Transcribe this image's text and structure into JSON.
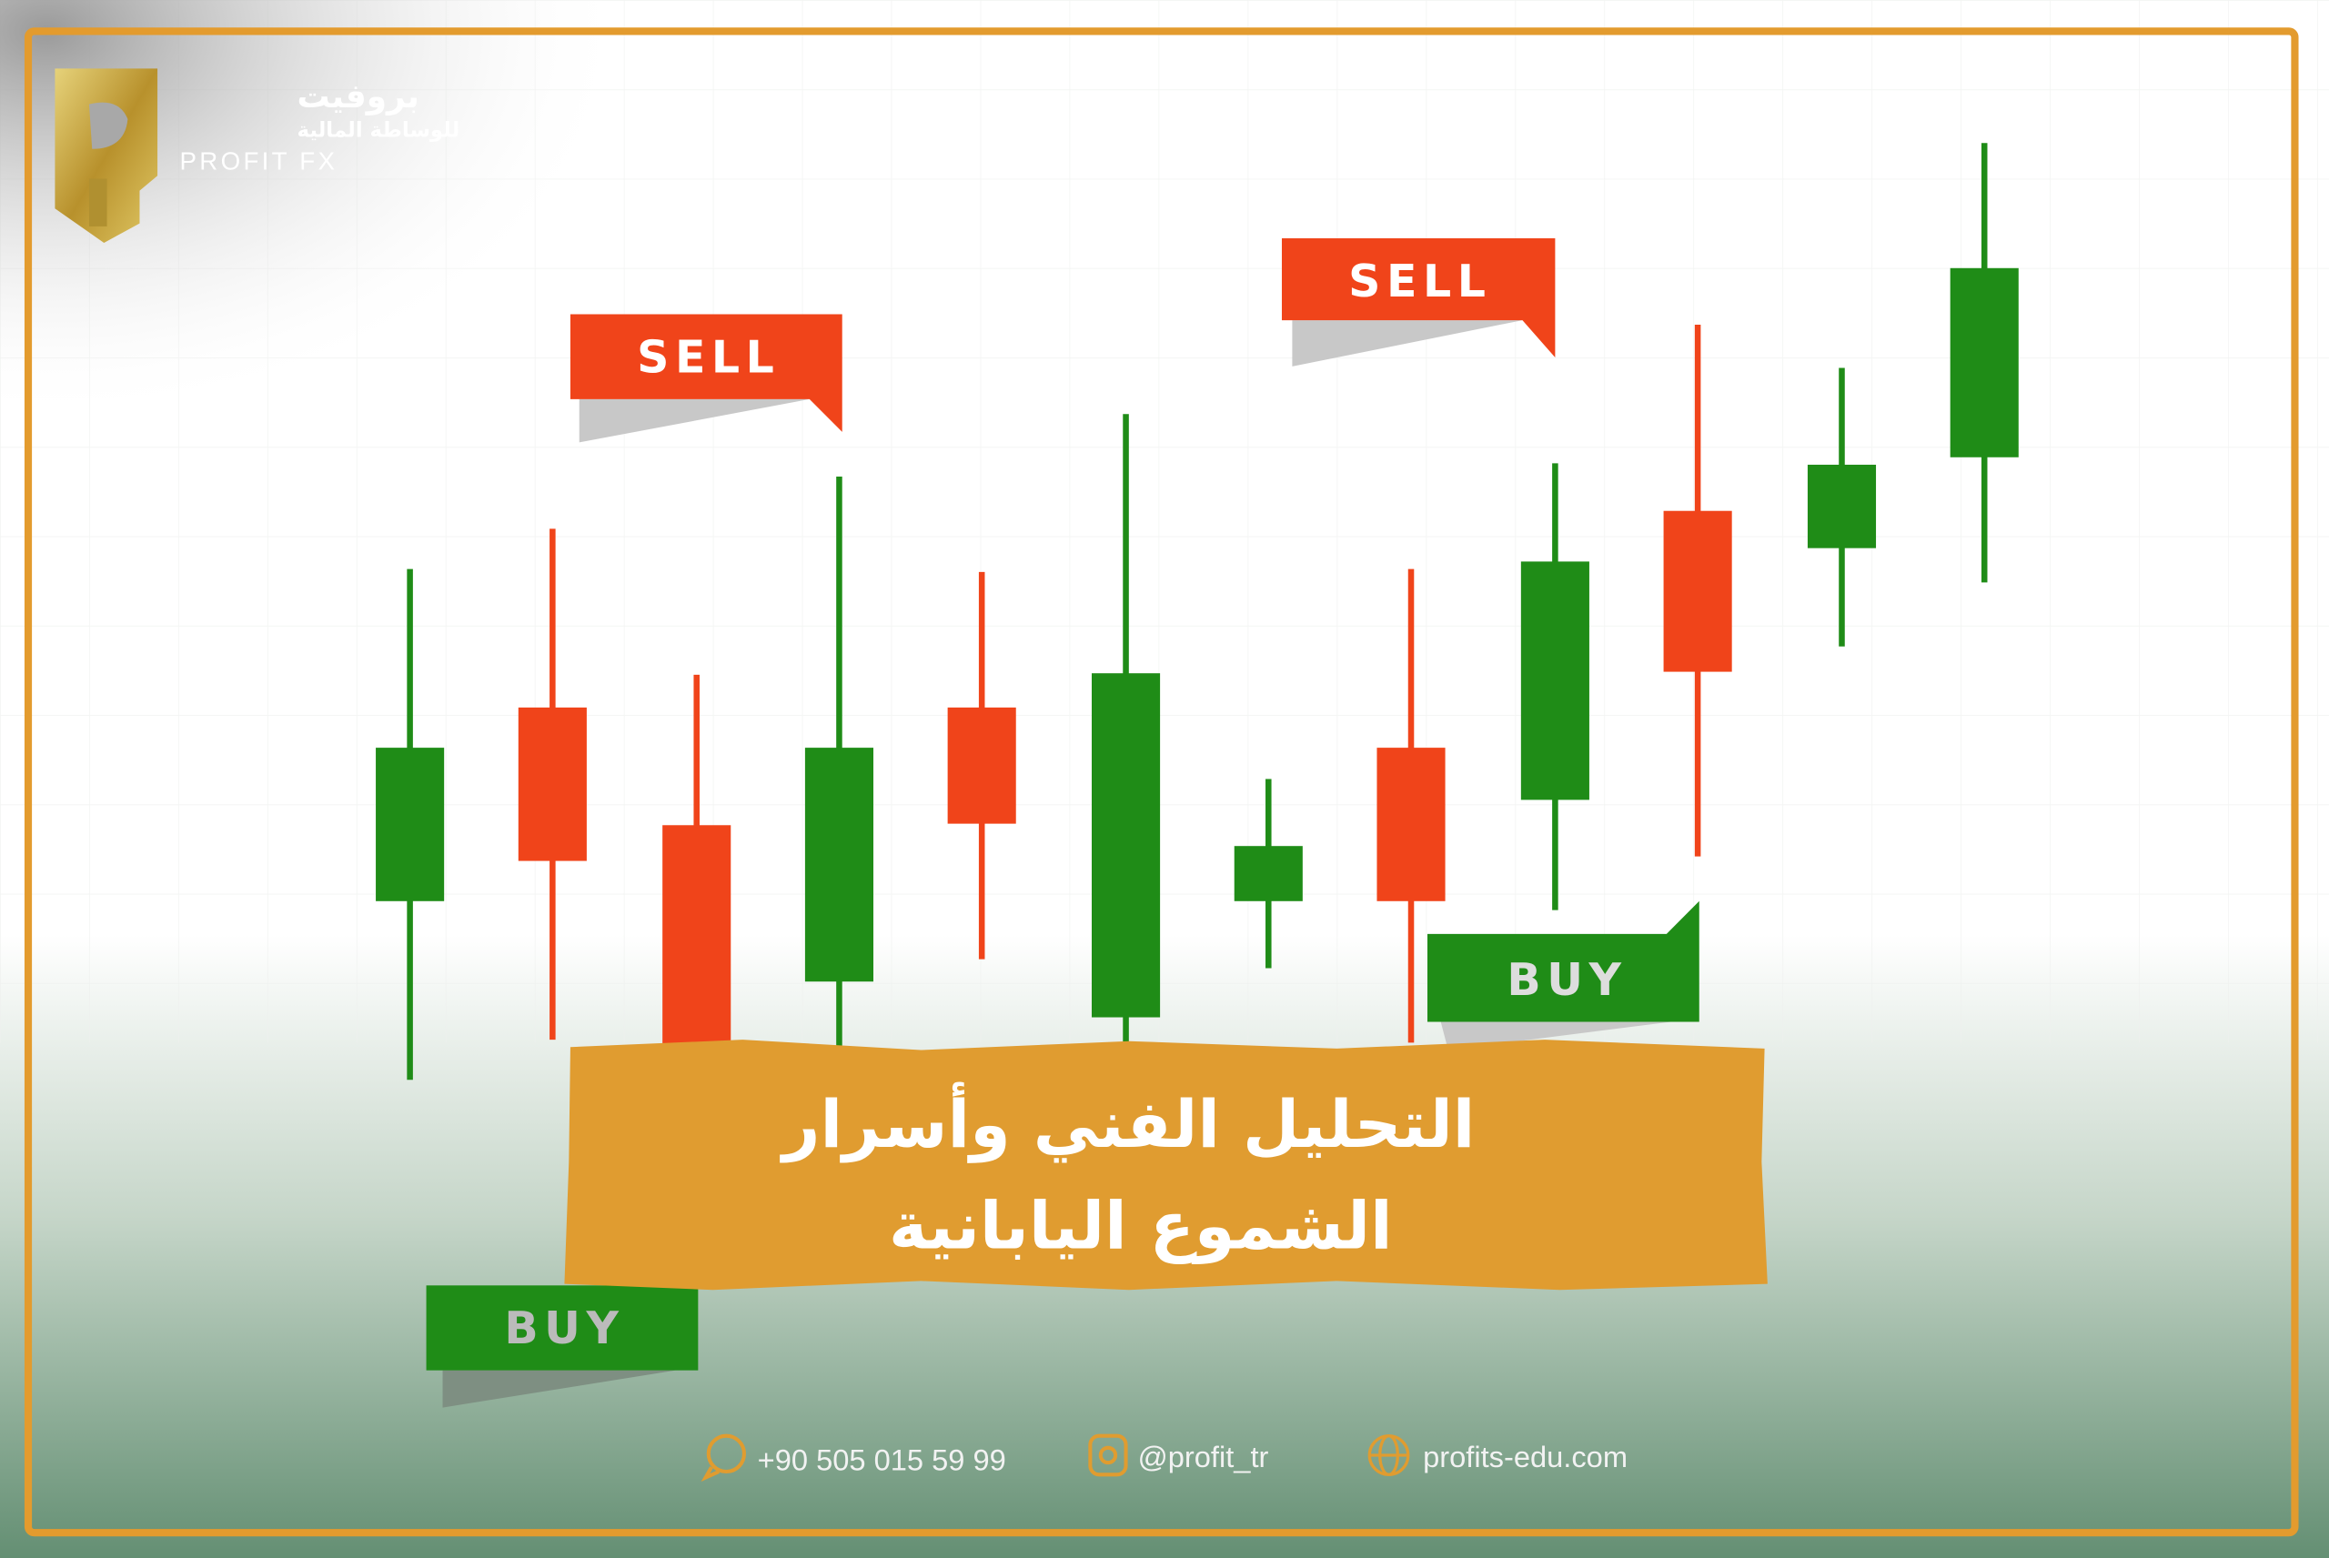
{
  "brand": {
    "name_ar": "بروفيت",
    "subtitle_ar": "للوساطة المالية",
    "name_en": "PROFIT FX"
  },
  "labels": {
    "sell_1": "SELL",
    "sell_2": "SELL",
    "buy_1": "BUY",
    "buy_2": "BUY"
  },
  "title": {
    "line1": "التحليل الفني وأسرار",
    "line2": "الشموع اليابانية"
  },
  "footer": {
    "phone": "+90 505 015 59 99",
    "instagram": "@profit_tr",
    "website": "profits-edu.com",
    "icons": [
      "whatsapp-icon",
      "instagram-icon",
      "globe-icon"
    ]
  },
  "colors": {
    "accent": "#e39b2e",
    "bull": "#1f8c17",
    "bear": "#f0441a",
    "footer_bg": "#6a9579"
  }
}
